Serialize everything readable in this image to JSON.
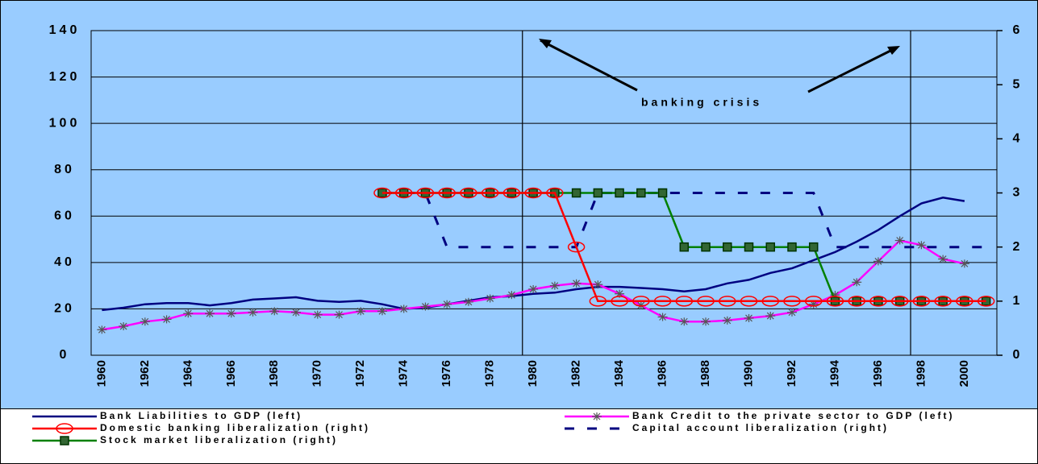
{
  "chart_data": {
    "type": "line",
    "annotation": "banking crisis",
    "categories": [
      "1960",
      null,
      "1962",
      null,
      "1964",
      null,
      "1966",
      null,
      "1968",
      null,
      "1970",
      null,
      "1972",
      null,
      "1974",
      null,
      "1976",
      null,
      "1978",
      null,
      "1980",
      null,
      "1982",
      null,
      "1984",
      null,
      "1986",
      null,
      "1988",
      null,
      "1990",
      null,
      "1992",
      null,
      "1994",
      null,
      "1996",
      null,
      "1998",
      null,
      "2000",
      null
    ],
    "crisis_lines": [
      "1980",
      "1998"
    ],
    "ylim": [
      0,
      140
    ],
    "yticks": [
      0,
      20,
      40,
      60,
      80,
      100,
      120,
      140
    ],
    "y2lim": [
      0,
      6
    ],
    "y2ticks": [
      0,
      1,
      2,
      3,
      4,
      5,
      6
    ],
    "grid": true,
    "series": [
      {
        "name": "Bank Liabilities to GDP (left)",
        "color": "#000080",
        "marker": "none",
        "axis": "y",
        "values": [
          19.5,
          20.5,
          22,
          22.5,
          22.5,
          21.5,
          22.5,
          24,
          24.5,
          25,
          23.5,
          23,
          23.5,
          22,
          20,
          20.5,
          22,
          23.5,
          25,
          25.5,
          26.5,
          27,
          28.5,
          29.5,
          29.5,
          29,
          28.5,
          27.5,
          28.5,
          31,
          32.5,
          35.5,
          37.5,
          41,
          44.5,
          49,
          54,
          60,
          65.5,
          68,
          66.5,
          null
        ]
      },
      {
        "name": "Bank Credit to the private sector to GDP (left)",
        "color": "#ff00ff",
        "marker": "star",
        "axis": "y",
        "values": [
          11,
          12.5,
          14.5,
          15.5,
          18,
          18,
          18,
          18.5,
          19,
          18.5,
          17.5,
          17.5,
          19,
          19,
          20,
          21,
          22,
          23,
          24.5,
          26,
          28.5,
          30,
          31,
          30.5,
          26.5,
          21.5,
          16.5,
          14.5,
          14.5,
          15,
          16,
          17,
          18.5,
          22,
          26,
          31.5,
          40.5,
          49.5,
          47.5,
          41.5,
          39.5,
          null
        ]
      },
      {
        "name": "Domestic banking liberalization (right)",
        "color": "#ff0000",
        "marker": "circle",
        "axis": "y2",
        "values": [
          null,
          null,
          null,
          null,
          null,
          null,
          null,
          null,
          null,
          null,
          null,
          null,
          null,
          3,
          3,
          3,
          3,
          3,
          3,
          3,
          3,
          3,
          2,
          1,
          1,
          1,
          1,
          1,
          1,
          1,
          1,
          1,
          1,
          1,
          1,
          1,
          1,
          1,
          1,
          1,
          1,
          1
        ]
      },
      {
        "name": "Capital account liberalization (right)",
        "color": "#000080",
        "marker": "none",
        "dash": true,
        "axis": "y2",
        "values": [
          null,
          null,
          null,
          null,
          null,
          null,
          null,
          null,
          null,
          null,
          null,
          null,
          null,
          3,
          3,
          3,
          2,
          2,
          2,
          2,
          2,
          2,
          2,
          3,
          3,
          3,
          3,
          3,
          3,
          3,
          3,
          3,
          3,
          3,
          2,
          2,
          2,
          2,
          2,
          2,
          2,
          2
        ]
      },
      {
        "name": "Stock market liberalization (right)",
        "color": "#008000",
        "marker": "square",
        "axis": "y2",
        "values": [
          null,
          null,
          null,
          null,
          null,
          null,
          null,
          null,
          null,
          null,
          null,
          null,
          null,
          3,
          3,
          3,
          3,
          3,
          3,
          3,
          3,
          3,
          3,
          3,
          3,
          3,
          3,
          2,
          2,
          2,
          2,
          2,
          2,
          2,
          1,
          1,
          1,
          1,
          1,
          1,
          1,
          1
        ]
      }
    ]
  }
}
